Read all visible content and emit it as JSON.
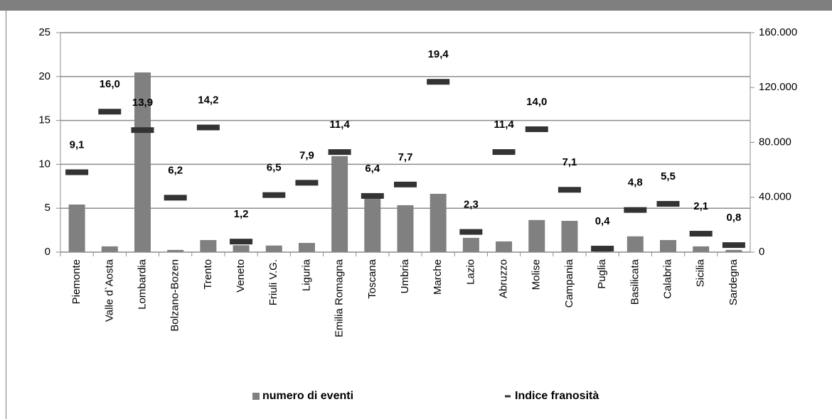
{
  "chart_data": {
    "type": "bar",
    "categories": [
      "Piemonte",
      "Valle d`Aosta",
      "Lombardia",
      "Bolzano-Bozen",
      "Trento",
      "Veneto",
      "Friuli V.G.",
      "Liguria",
      "Emilia Romagna",
      "Toscana",
      "Umbria",
      "Marche",
      "Lazio",
      "Abruzzo",
      "Molise",
      "Campania",
      "Puglia",
      "Basilicata",
      "Calabria",
      "Sicilia",
      "Sardegna"
    ],
    "series": [
      {
        "name": "numero di eventi",
        "type": "bar",
        "axis": "y2",
        "color": "#808080",
        "values": [
          34700,
          4200,
          131000,
          1600,
          8800,
          5000,
          4800,
          6700,
          70000,
          41000,
          34200,
          42500,
          10400,
          7800,
          23400,
          22800,
          3200,
          11500,
          8800,
          4200,
          1600
        ]
      },
      {
        "name": "Indice franosità",
        "type": "marker",
        "color": "#333333",
        "values": [
          9.1,
          16.0,
          13.9,
          6.2,
          14.2,
          1.2,
          6.5,
          7.9,
          11.4,
          6.4,
          7.7,
          19.4,
          2.3,
          11.4,
          14.0,
          7.1,
          0.4,
          4.8,
          5.5,
          2.1,
          0.8
        ],
        "value_labels": [
          "9,1",
          "16,0",
          "13,9",
          "6,2",
          "14,2",
          "1,2",
          "6,5",
          "7,9",
          "11,4",
          "6,4",
          "7,7",
          "19,4",
          "2,3",
          "11,4",
          "14,0",
          "7,1",
          "0,4",
          "4,8",
          "5,5",
          "2,1",
          "0,8"
        ]
      }
    ],
    "ylim": [
      0,
      25
    ],
    "yticks": [
      0,
      5,
      10,
      15,
      20,
      25
    ],
    "y2lim": [
      0,
      160000
    ],
    "y2ticks": [
      0,
      {
        "value": 40000,
        "label": "40.000"
      },
      {
        "value": 80000,
        "label": "80.000"
      },
      {
        "value": 120000,
        "label": "120.000"
      },
      {
        "value": 160000,
        "label": "160.000"
      }
    ],
    "grid": true,
    "legend": "bottom"
  }
}
